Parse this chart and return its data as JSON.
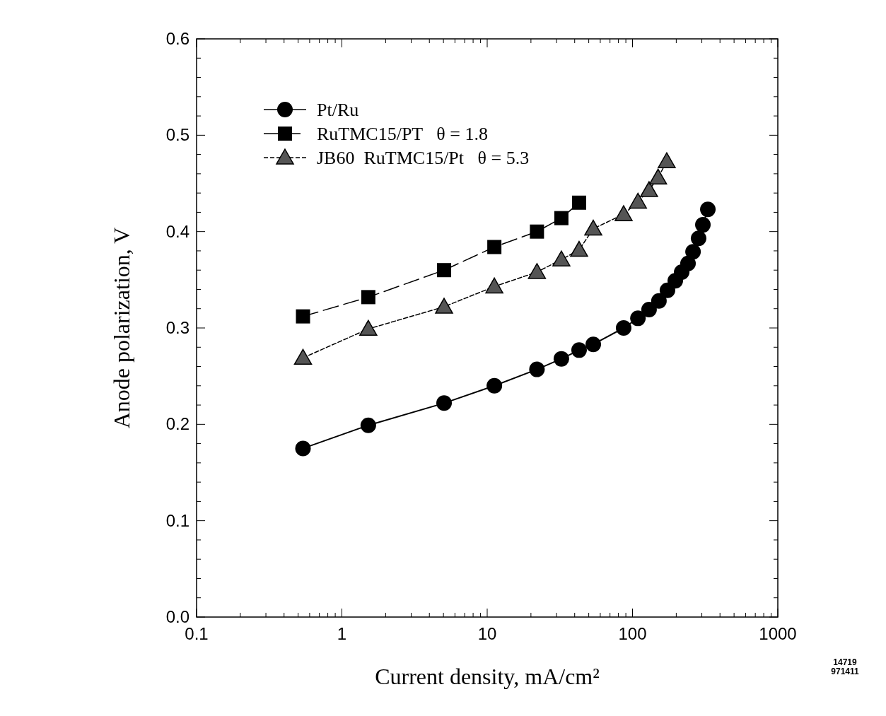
{
  "chart_data": {
    "type": "line",
    "xlabel": "Current density, mA/cm²",
    "ylabel": "Anode polarization, V",
    "log": "x",
    "xlim": [
      0.1,
      1000
    ],
    "ylim": [
      0,
      0.6
    ],
    "xticks": [
      {
        "value": 0.1,
        "label": "0.1"
      },
      {
        "value": 0.2,
        "label": null
      },
      {
        "value": 0.3,
        "label": null
      },
      {
        "value": 0.4,
        "label": null
      },
      {
        "value": 0.5,
        "label": null
      },
      {
        "value": 0.6,
        "label": null
      },
      {
        "value": 0.7,
        "label": null
      },
      {
        "value": 0.8,
        "label": null
      },
      {
        "value": 0.9,
        "label": null
      },
      1,
      {
        "value": 2,
        "label": null
      },
      {
        "value": 3,
        "label": null
      },
      {
        "value": 4,
        "label": null
      },
      {
        "value": 5,
        "label": null
      },
      {
        "value": 6,
        "label": null
      },
      {
        "value": 7,
        "label": null
      },
      {
        "value": 8,
        "label": null
      },
      {
        "value": 9,
        "label": null
      },
      10,
      {
        "value": 20,
        "label": null
      },
      {
        "value": 30,
        "label": null
      },
      {
        "value": 40,
        "label": null
      },
      {
        "value": 50,
        "label": null
      },
      {
        "value": 60,
        "label": null
      },
      {
        "value": 70,
        "label": null
      },
      {
        "value": 80,
        "label": null
      },
      {
        "value": 90,
        "label": null
      },
      100,
      {
        "value": 200,
        "label": null
      },
      {
        "value": 300,
        "label": null
      },
      {
        "value": 400,
        "label": null
      },
      {
        "value": 500,
        "label": null
      },
      {
        "value": 600,
        "label": null
      },
      {
        "value": 700,
        "label": null
      },
      {
        "value": 800,
        "label": null
      },
      {
        "value": 900,
        "label": null
      },
      1000
    ],
    "yticks": [
      {
        "value": 0,
        "label": "0.0"
      },
      {
        "value": 0.02,
        "label": null
      },
      {
        "value": 0.04,
        "label": null
      },
      {
        "value": 0.06,
        "label": null
      },
      {
        "value": 0.08,
        "label": null
      },
      0.1,
      {
        "value": 0.12,
        "label": null
      },
      {
        "value": 0.14,
        "label": null
      },
      {
        "value": 0.16,
        "label": null
      },
      {
        "value": 0.18,
        "label": null
      },
      0.2,
      {
        "value": 0.22,
        "label": null
      },
      {
        "value": 0.24,
        "label": null
      },
      {
        "value": 0.26,
        "label": null
      },
      {
        "value": 0.28,
        "label": null
      },
      0.3,
      {
        "value": 0.32,
        "label": null
      },
      {
        "value": 0.34,
        "label": null
      },
      {
        "value": 0.36,
        "label": null
      },
      {
        "value": 0.38,
        "label": null
      },
      0.4,
      {
        "value": 0.42,
        "label": null
      },
      {
        "value": 0.44,
        "label": null
      },
      {
        "value": 0.46,
        "label": null
      },
      {
        "value": 0.48,
        "label": null
      },
      0.5,
      {
        "value": 0.52,
        "label": null
      },
      {
        "value": 0.54,
        "label": null
      },
      {
        "value": 0.56,
        "label": null
      },
      {
        "value": 0.58,
        "label": null
      },
      0.6
    ],
    "grid": false,
    "legend": "top left",
    "series": [
      {
        "name": "Pt/Ru",
        "color": "#000000",
        "marker": "circle",
        "line_style": "solid",
        "x": [
          0.54,
          1.52,
          5.05,
          11.2,
          22,
          32.4,
          42.9,
          53.7,
          86.9,
          109,
          130,
          152,
          174,
          197,
          218,
          241,
          261,
          285,
          305,
          330
        ],
        "values": [
          0.175,
          0.199,
          0.222,
          0.24,
          0.257,
          0.268,
          0.277,
          0.283,
          0.3,
          0.31,
          0.319,
          0.328,
          0.339,
          0.349,
          0.358,
          0.367,
          0.379,
          0.393,
          0.407,
          0.423
        ]
      },
      {
        "name": "RuTMC15/PT   θ = 1.8",
        "color": "#000000",
        "marker": "square",
        "line_style": "dashed",
        "x": [
          0.54,
          1.52,
          5.05,
          11.2,
          22,
          32.4,
          42.9
        ],
        "values": [
          0.312,
          0.332,
          0.36,
          0.384,
          0.4,
          0.414,
          0.43
        ]
      },
      {
        "name": "JB60  RuTMC15/Pt   θ = 5.3",
        "color": "#555555",
        "marker": "triangle",
        "line_style": "dotted",
        "x": [
          0.54,
          1.52,
          5.05,
          11.2,
          22,
          32.4,
          42.9,
          53.7,
          86.9,
          109,
          130,
          150,
          172
        ],
        "values": [
          0.269,
          0.299,
          0.322,
          0.343,
          0.358,
          0.371,
          0.381,
          0.403,
          0.418,
          0.431,
          0.443,
          0.456,
          0.473
        ]
      }
    ],
    "annotations": [
      "14719",
      "971411"
    ]
  }
}
